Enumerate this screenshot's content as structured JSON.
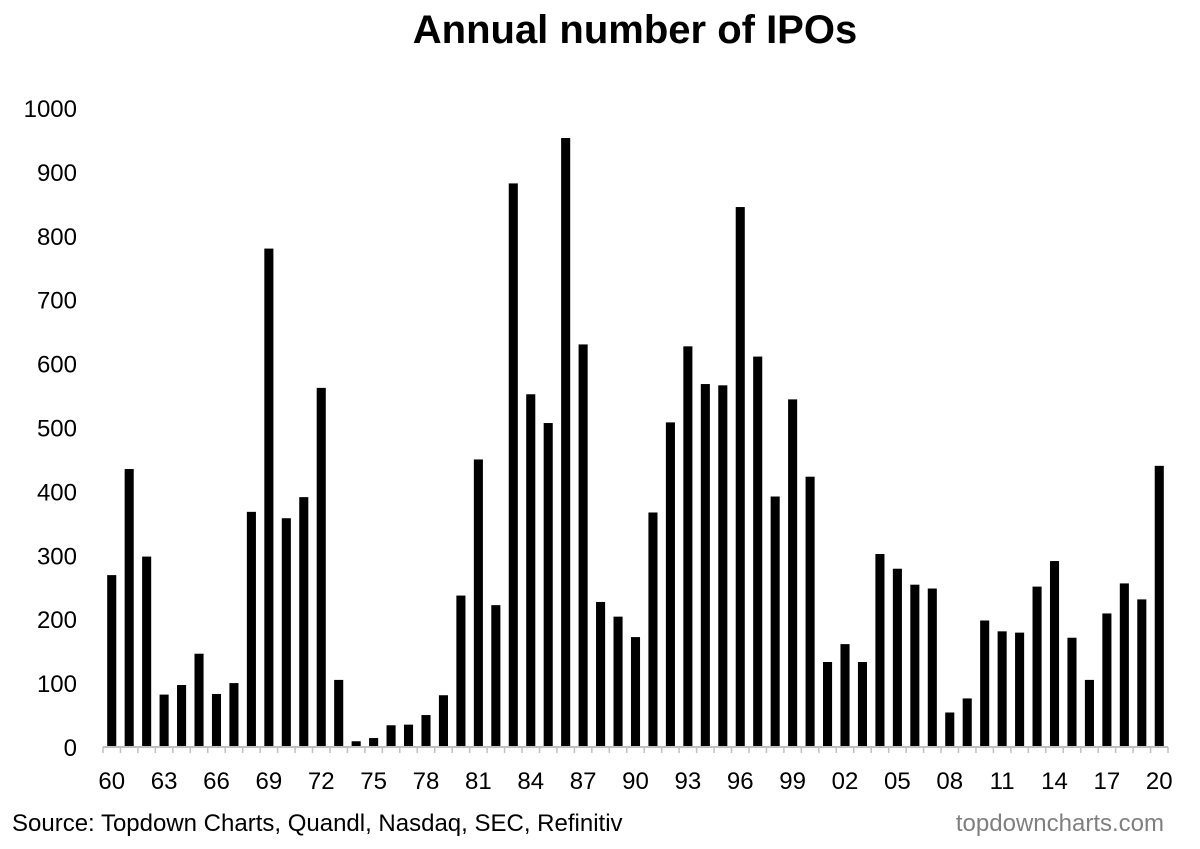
{
  "chart_data": {
    "type": "bar",
    "title": "Annual number of IPOs",
    "xlabel": "",
    "ylabel": "",
    "ylim": [
      0,
      1000
    ],
    "yticks": [
      0,
      100,
      200,
      300,
      400,
      500,
      600,
      700,
      800,
      900,
      1000
    ],
    "ytick_labels": [
      "0",
      "100",
      "200",
      "300",
      "400",
      "500",
      "600",
      "700",
      "800",
      "900",
      "1000"
    ],
    "categories": [
      "1960",
      "1961",
      "1962",
      "1963",
      "1964",
      "1965",
      "1966",
      "1967",
      "1968",
      "1969",
      "1970",
      "1971",
      "1972",
      "1973",
      "1974",
      "1975",
      "1976",
      "1977",
      "1978",
      "1979",
      "1980",
      "1981",
      "1982",
      "1983",
      "1984",
      "1985",
      "1986",
      "1987",
      "1988",
      "1989",
      "1990",
      "1991",
      "1992",
      "1993",
      "1994",
      "1995",
      "1996",
      "1997",
      "1998",
      "1999",
      "2000",
      "2001",
      "2002",
      "2003",
      "2004",
      "2005",
      "2006",
      "2007",
      "2008",
      "2009",
      "2010",
      "2011",
      "2012",
      "2013",
      "2014",
      "2015",
      "2016",
      "2017",
      "2018",
      "2019",
      "2020"
    ],
    "xtick_labels": [
      "60",
      "63",
      "66",
      "69",
      "72",
      "75",
      "78",
      "81",
      "84",
      "87",
      "90",
      "93",
      "96",
      "99",
      "02",
      "05",
      "08",
      "11",
      "14",
      "17",
      "20"
    ],
    "values": [
      269,
      435,
      298,
      82,
      97,
      146,
      83,
      100,
      368,
      780,
      358,
      391,
      562,
      105,
      9,
      14,
      34,
      35,
      50,
      81,
      237,
      450,
      222,
      882,
      552,
      507,
      953,
      630,
      227,
      204,
      172,
      367,
      508,
      627,
      568,
      566,
      845,
      611,
      392,
      544,
      423,
      133,
      161,
      133,
      302,
      279,
      254,
      248,
      54,
      76,
      198,
      181,
      179,
      251,
      291,
      171,
      105,
      209,
      256,
      231,
      440
    ],
    "grid": false,
    "legend": "none",
    "bar_color": "#000000"
  },
  "footer": {
    "source": "Source: Topdown Charts, Quandl, Nasdaq, SEC, Refinitiv",
    "watermark": "topdowncharts.com"
  }
}
